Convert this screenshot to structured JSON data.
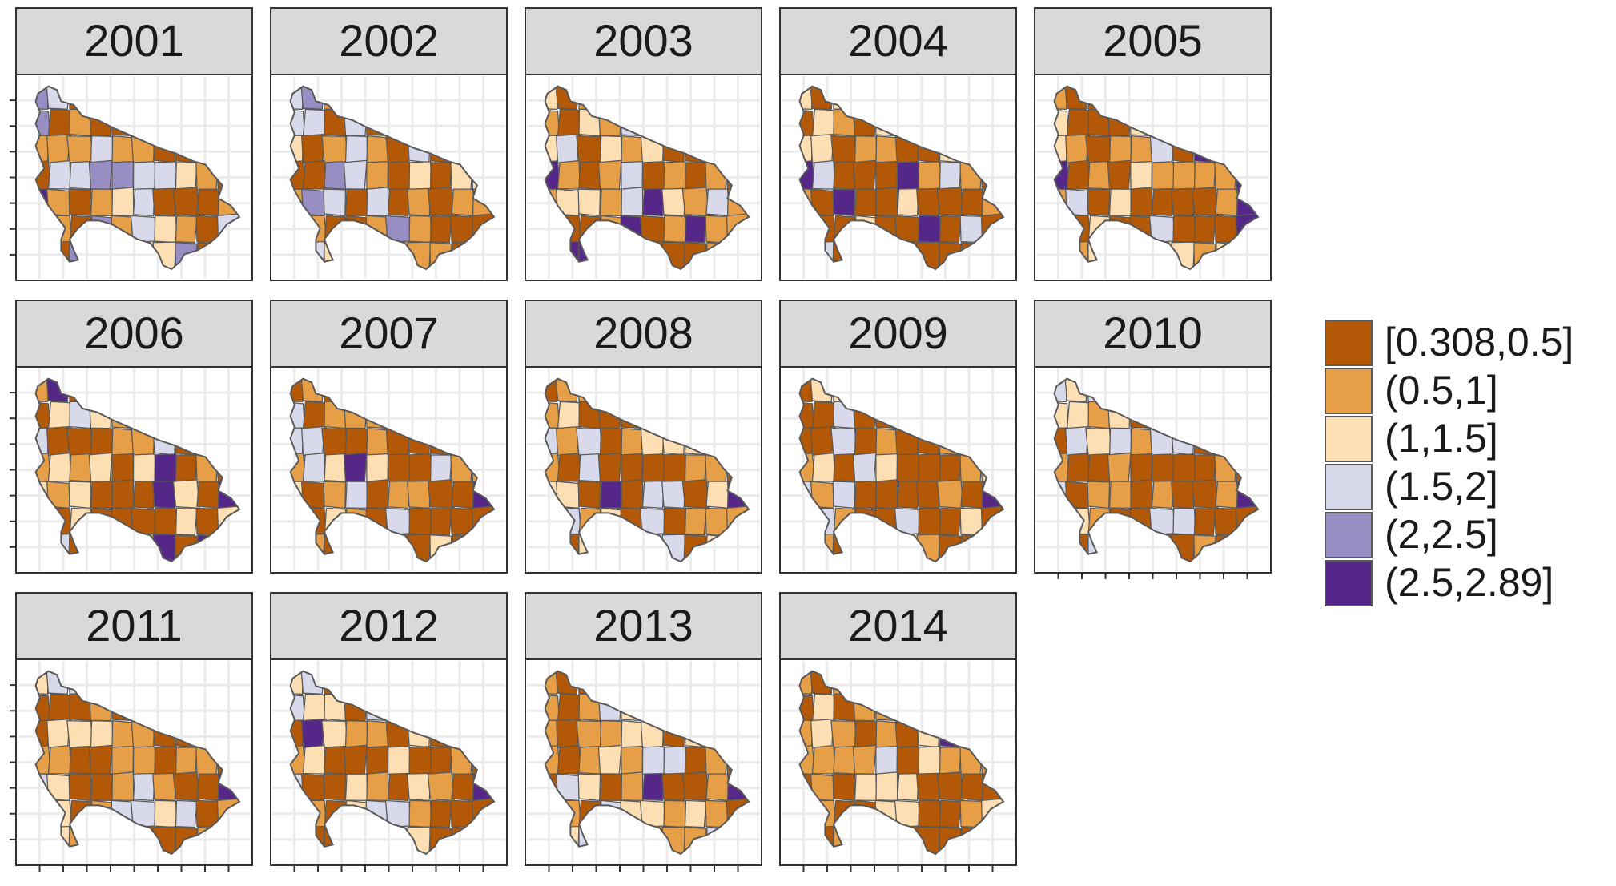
{
  "panels": [
    {
      "year": "2001",
      "palette": [
        0.35,
        0.25,
        0.18,
        0.12,
        0.06,
        0.04
      ],
      "dark_label": "2.5,2.89"
    },
    {
      "year": "2002",
      "palette": [
        0.45,
        0.2,
        0.18,
        0.12,
        0.04,
        0.01
      ]
    },
    {
      "year": "2003",
      "palette": [
        0.45,
        0.3,
        0.15,
        0.05,
        0.0,
        0.05
      ]
    },
    {
      "year": "2004",
      "palette": [
        0.5,
        0.25,
        0.15,
        0.04,
        0.0,
        0.06
      ]
    },
    {
      "year": "2005",
      "palette": [
        0.45,
        0.25,
        0.2,
        0.04,
        0.0,
        0.06
      ]
    },
    {
      "year": "2006",
      "palette": [
        0.5,
        0.25,
        0.15,
        0.06,
        0.0,
        0.04
      ]
    },
    {
      "year": "2007",
      "palette": [
        0.5,
        0.25,
        0.15,
        0.08,
        0.0,
        0.02
      ]
    },
    {
      "year": "2008",
      "palette": [
        0.45,
        0.25,
        0.18,
        0.08,
        0.0,
        0.04
      ]
    },
    {
      "year": "2009",
      "palette": [
        0.5,
        0.25,
        0.15,
        0.08,
        0.0,
        0.02
      ]
    },
    {
      "year": "2010",
      "palette": [
        0.5,
        0.25,
        0.15,
        0.08,
        0.0,
        0.02
      ]
    },
    {
      "year": "2011",
      "palette": [
        0.5,
        0.25,
        0.15,
        0.08,
        0.0,
        0.02
      ]
    },
    {
      "year": "2012",
      "palette": [
        0.5,
        0.25,
        0.15,
        0.06,
        0.0,
        0.04
      ]
    },
    {
      "year": "2013",
      "palette": [
        0.5,
        0.25,
        0.15,
        0.06,
        0.0,
        0.04
      ]
    },
    {
      "year": "2014",
      "palette": [
        0.5,
        0.28,
        0.15,
        0.06,
        0.0,
        0.01
      ]
    }
  ],
  "legend": [
    {
      "label": "[0.308,0.5]",
      "color": "#b35806"
    },
    {
      "label": "(0.5,1]",
      "color": "#e69f47"
    },
    {
      "label": "(1,1.5]",
      "color": "#fddfb3"
    },
    {
      "label": "(1.5,2]",
      "color": "#d8daeb"
    },
    {
      "label": "(2,2.5]",
      "color": "#998ec3"
    },
    {
      "label": "(2.5,2.89]",
      "color": "#542788"
    }
  ]
}
